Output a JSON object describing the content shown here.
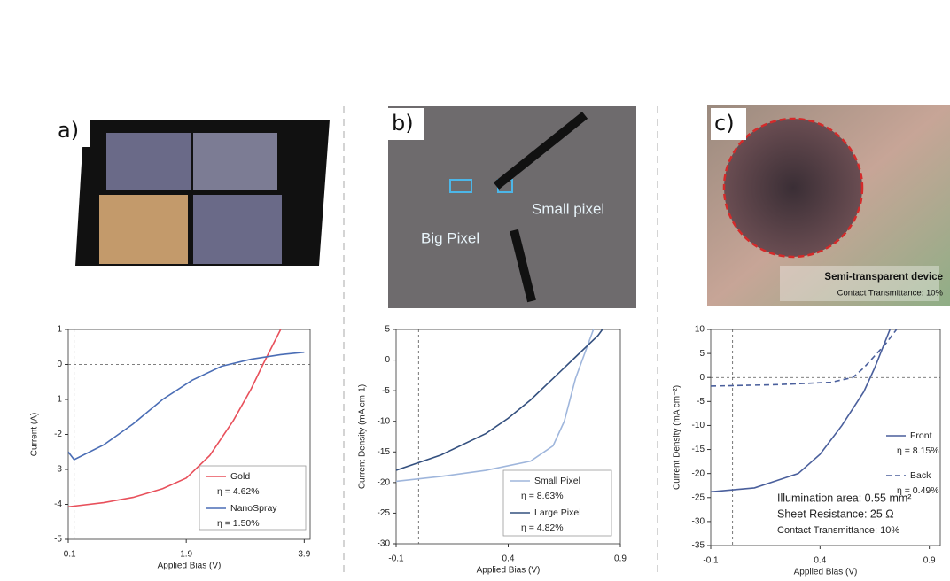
{
  "panels": [
    {
      "label": "a)",
      "photo_texts": []
    },
    {
      "label": "b)",
      "photo_texts": [
        "Big Pixel",
        "Small pixel"
      ]
    },
    {
      "label": "c)",
      "photo_texts": [
        "Semi-transparent device",
        "Contact Transmittance: 10%"
      ]
    }
  ],
  "chart_data": [
    {
      "type": "line",
      "x_label": "Applied Bias (V)",
      "y_label": "Current (A)",
      "xlim": [
        -0.1,
        4.0
      ],
      "ylim": [
        -5,
        1
      ],
      "xticks": [
        -0.1,
        1.9,
        3.9
      ],
      "yticks": [
        1,
        0,
        -1,
        -2,
        -3,
        -4,
        -5
      ],
      "series": [
        {
          "name": "Gold",
          "legend_note": "η = 4.62%",
          "color": "#e8505b",
          "x": [
            -0.1,
            0.5,
            1.0,
            1.5,
            1.9,
            2.3,
            2.7,
            3.0,
            3.2,
            3.5
          ],
          "values": [
            -4.07,
            -3.95,
            -3.8,
            -3.55,
            -3.25,
            -2.6,
            -1.6,
            -0.7,
            0.0,
            1.0
          ]
        },
        {
          "name": "NanoSpray",
          "legend_note": "η = 1.50%",
          "color": "#4a6db5",
          "x": [
            -0.1,
            0.0,
            0.5,
            1.0,
            1.5,
            2.0,
            2.5,
            3.0,
            3.5,
            3.9
          ],
          "values": [
            -2.5,
            -2.72,
            -2.3,
            -1.7,
            -1.0,
            -0.45,
            -0.05,
            0.15,
            0.28,
            0.35
          ]
        }
      ]
    },
    {
      "type": "line",
      "x_label": "Applied Bias (V)",
      "y_label": "Current Density (mA cm-1)",
      "xlim": [
        -0.1,
        0.9
      ],
      "ylim": [
        -30,
        5
      ],
      "xticks": [
        -0.1,
        0.4,
        0.9
      ],
      "yticks": [
        5,
        0,
        -5,
        -10,
        -15,
        -20,
        -25,
        -30
      ],
      "series": [
        {
          "name": "Small Pixel",
          "legend_note": "η = 8.63%",
          "color": "#9fb6dc",
          "x": [
            -0.1,
            0.1,
            0.3,
            0.5,
            0.6,
            0.65,
            0.7,
            0.75,
            0.78
          ],
          "values": [
            -19.8,
            -19,
            -18,
            -16.5,
            -14,
            -10,
            -3,
            2,
            5
          ]
        },
        {
          "name": "Large Pixel",
          "legend_note": "η = 4.82%",
          "color": "#34507f",
          "x": [
            -0.1,
            0.1,
            0.3,
            0.4,
            0.5,
            0.6,
            0.7,
            0.8,
            0.82
          ],
          "values": [
            -18,
            -15.5,
            -12,
            -9.5,
            -6.5,
            -3,
            0.5,
            4,
            5
          ]
        }
      ]
    },
    {
      "type": "line",
      "x_label": "Applied Bias (V)",
      "y_label": "Current Density (mA cm⁻²)",
      "xlim": [
        -0.1,
        0.95
      ],
      "ylim": [
        -35,
        10
      ],
      "xticks": [
        -0.1,
        0.4,
        0.9
      ],
      "yticks": [
        10,
        5,
        0,
        -5,
        -10,
        -15,
        -20,
        -25,
        -30,
        -35
      ],
      "annotations": [
        "Illumination area: 0.55 mm²",
        "Sheet Resistance: 25 Ω",
        "Contact Transmittance: 10%"
      ],
      "series": [
        {
          "name": "Front",
          "legend_note": "η = 8.15%",
          "color": "#4a5f9c",
          "dashed": false,
          "x": [
            -0.1,
            0.1,
            0.3,
            0.4,
            0.5,
            0.6,
            0.65,
            0.72
          ],
          "values": [
            -23.8,
            -23,
            -20,
            -16,
            -10,
            -3,
            2,
            10
          ]
        },
        {
          "name": "Back",
          "legend_note": "η = 0.49%",
          "color": "#4a5f9c",
          "dashed": true,
          "x": [
            -0.1,
            0.2,
            0.45,
            0.55,
            0.6,
            0.7,
            0.75
          ],
          "values": [
            -1.8,
            -1.5,
            -1,
            0,
            2,
            7,
            10
          ]
        }
      ]
    }
  ]
}
